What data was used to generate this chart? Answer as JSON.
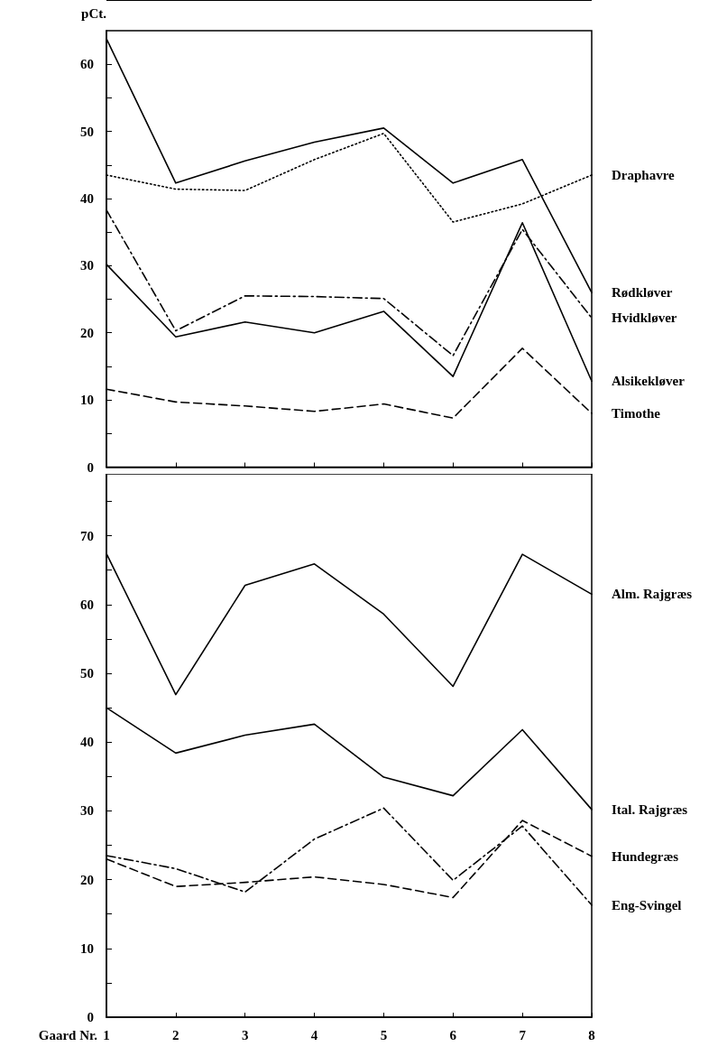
{
  "chart_data": [
    {
      "type": "line",
      "ylabel": "pCt.",
      "categories": [
        "1",
        "2",
        "3",
        "4",
        "5",
        "6",
        "7",
        "8"
      ],
      "tick_labels": "y",
      "legend": false,
      "grid": false,
      "marker": "none",
      "ylim": [
        0,
        65
      ],
      "yticks": [
        0,
        {
          "value": 5,
          "label": null
        },
        10,
        {
          "value": 15,
          "label": null
        },
        20,
        {
          "value": 25,
          "label": null
        },
        30,
        {
          "value": 35,
          "label": null
        },
        40,
        {
          "value": 45,
          "label": null
        },
        50,
        {
          "value": 55,
          "label": null
        },
        60
      ],
      "series": [
        {
          "name": "Draphavre",
          "color": "#000000",
          "line_style": "dotted",
          "values": [
            43.5,
            41.4,
            41.2,
            45.8,
            49.7,
            36.5,
            39.2,
            43.5
          ]
        },
        {
          "name": "Rødkløver",
          "color": "#000000",
          "line_style": "solid",
          "values": [
            63.8,
            42.3,
            45.6,
            48.4,
            50.5,
            42.3,
            45.8,
            26.0
          ]
        },
        {
          "name": "Hvidkløver",
          "color": "#000000",
          "line_style": "dashdot",
          "values": [
            38.3,
            20.3,
            25.5,
            25.4,
            25.1,
            16.6,
            35.4,
            22.2
          ]
        },
        {
          "name": "Alsikekløver",
          "color": "#000000",
          "line_style": "solid",
          "values": [
            30.2,
            19.4,
            21.6,
            20.0,
            23.2,
            13.5,
            36.4,
            12.8
          ]
        },
        {
          "name": "Timothe",
          "color": "#000000",
          "line_style": "dashed",
          "values": [
            11.6,
            9.7,
            9.1,
            8.3,
            9.4,
            7.3,
            17.7,
            8.0
          ]
        }
      ]
    },
    {
      "type": "line",
      "xlabel": "Gaard Nr.",
      "categories": [
        "1",
        "2",
        "3",
        "4",
        "5",
        "6",
        "7",
        "8"
      ],
      "legend": false,
      "grid": false,
      "marker": "none",
      "ylim": [
        0,
        79
      ],
      "yticks": [
        0,
        {
          "value": 5,
          "label": null
        },
        10,
        {
          "value": 15,
          "label": null
        },
        20,
        {
          "value": 25,
          "label": null
        },
        30,
        {
          "value": 35,
          "label": null
        },
        40,
        {
          "value": 45,
          "label": null
        },
        50,
        {
          "value": 55,
          "label": null
        },
        60,
        {
          "value": 65,
          "label": null
        },
        70,
        {
          "value": 75,
          "label": null
        }
      ],
      "series": [
        {
          "name": "Alm. Rajgræs",
          "color": "#000000",
          "line_style": "solid",
          "values": [
            67.4,
            46.9,
            62.8,
            65.9,
            58.6,
            48.1,
            67.3,
            61.5
          ]
        },
        {
          "name": "Ital. Rajgræs",
          "color": "#000000",
          "line_style": "solid",
          "values": [
            45.0,
            38.4,
            41.0,
            42.6,
            34.9,
            32.2,
            41.8,
            30.2
          ]
        },
        {
          "name": "Hundegræs",
          "color": "#000000",
          "line_style": "dashed",
          "values": [
            23.0,
            19.0,
            19.6,
            20.4,
            19.3,
            17.4,
            28.6,
            23.4
          ]
        },
        {
          "name": "Eng-Svingel",
          "color": "#000000",
          "line_style": "dashdot",
          "values": [
            23.5,
            21.6,
            18.2,
            25.9,
            30.4,
            19.9,
            27.8,
            16.3
          ]
        }
      ]
    }
  ]
}
